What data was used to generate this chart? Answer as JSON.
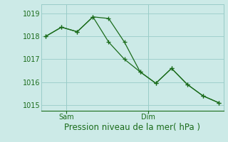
{
  "line1_x": [
    0,
    1,
    2,
    3,
    4,
    5,
    6,
    7,
    8,
    9,
    10,
    11
  ],
  "line1_y": [
    1018.0,
    1018.4,
    1018.2,
    1018.85,
    1018.78,
    1017.75,
    1016.45,
    1015.95,
    1016.6,
    1015.9,
    1015.4,
    1015.1
  ],
  "line2_x": [
    0,
    1,
    2,
    3,
    4,
    5,
    6,
    7,
    8,
    9,
    10,
    11
  ],
  "line2_y": [
    1018.0,
    1018.4,
    1018.2,
    1018.85,
    1017.75,
    1017.0,
    1016.45,
    1015.95,
    1016.6,
    1015.9,
    1015.4,
    1015.1
  ],
  "line_color": "#1a6b1a",
  "marker": "+",
  "marker_size": 4,
  "line_width": 0.9,
  "background_color": "#cceae7",
  "grid_color": "#99ccc8",
  "ylim": [
    1014.75,
    1019.4
  ],
  "yticks": [
    1015,
    1016,
    1017,
    1018,
    1019
  ],
  "sam_x": 1.3,
  "dim_x": 6.5,
  "xlabel": "Pression niveau de la mer( hPa )",
  "xlabel_fontsize": 8.5,
  "tick_fontsize": 7,
  "xlim": [
    -0.3,
    11.3
  ]
}
